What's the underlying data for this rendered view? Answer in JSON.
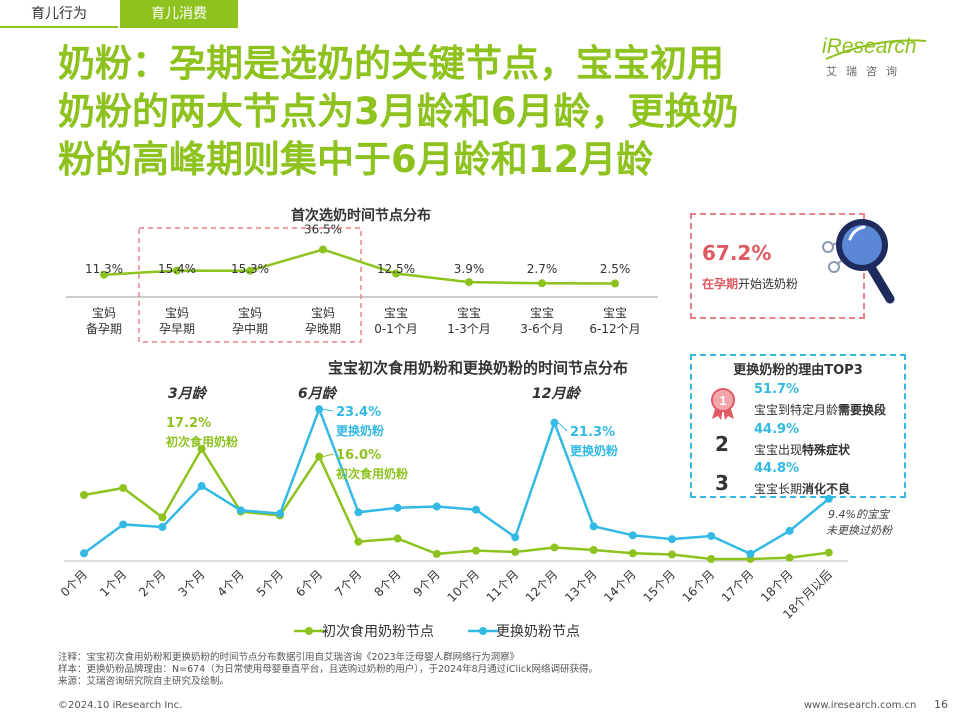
{
  "tabs": {
    "inactive": "育儿行为",
    "active": "育儿消费"
  },
  "logo": {
    "brand": "iResearch",
    "sub": "艾瑞咨询"
  },
  "headline": [
    "奶粉：孕期是选奶的关键节点，宝宝初用",
    "奶粉的两大节点为3月龄和6月龄，更换奶",
    "粉的高峰期则集中于6月龄和12月龄"
  ],
  "colors": {
    "green": "#8dc21f",
    "blue": "#33b9e3",
    "red": "#e05a64"
  },
  "callout": {
    "pct": "67.2%",
    "highlight": "在孕期",
    "rest": "开始选奶粉",
    "icon": "magnifier-icon"
  },
  "top3": {
    "title": "更换奶粉的理由TOP3",
    "items": [
      {
        "rank": "1",
        "pct": "51.7%",
        "text_pre": "宝宝到特定月龄",
        "text_bold": "需要换段",
        "icon": "medal-icon"
      },
      {
        "rank": "2",
        "pct": "44.9%",
        "text_pre": "宝宝出现",
        "text_bold": "特殊症状"
      },
      {
        "rank": "3",
        "pct": "44.8%",
        "text_pre": "宝宝长期",
        "text_bold": "消化不良"
      }
    ]
  },
  "notes": [
    "注释：宝宝初次食用奶粉和更换奶粉的时间节点分布数据引用自艾瑞咨询《2023年泛母婴人群网络行为洞察》",
    "样本：更换奶粉品牌理由：N=674（为日常使用母婴垂直平台，且选购过奶粉的用户），于2024年8月通过iClick网络调研获得。",
    "来源：艾瑞咨询研究院自主研究及绘制。"
  ],
  "footer": {
    "copyright": "©2024.10 iResearch Inc.",
    "url": "www.iresearch.com.cn",
    "page": "16"
  },
  "chart_data": [
    {
      "type": "line",
      "title": "首次选奶时间节点分布",
      "categories": [
        [
          "宝妈",
          "备孕期"
        ],
        [
          "宝妈",
          "孕早期"
        ],
        [
          "宝妈",
          "孕中期"
        ],
        [
          "宝妈",
          "孕晚期"
        ],
        [
          "宝宝",
          "0-1个月"
        ],
        [
          "宝宝",
          "1-3个月"
        ],
        [
          "宝宝",
          "3-6个月"
        ],
        [
          "宝宝",
          "6-12个月"
        ]
      ],
      "values": [
        11.3,
        15.4,
        15.3,
        36.5,
        12.5,
        3.9,
        2.7,
        2.5
      ],
      "labels": [
        "11.3%",
        "15.4%",
        "15.3%",
        "36.5%",
        "12.5%",
        "3.9%",
        "2.7%",
        "2.5%"
      ],
      "highlight_range": [
        1,
        3
      ],
      "color": "#8dc21f"
    },
    {
      "type": "line",
      "title": "宝宝初次食用奶粉和更换奶粉的时间节点分布",
      "categories": [
        "0个月",
        "1个月",
        "2个月",
        "3个月",
        "4个月",
        "5个月",
        "6个月",
        "7个月",
        "8个月",
        "9个月",
        "10个月",
        "11个月",
        "12个月",
        "13个月",
        "14个月",
        "15个月",
        "16个月",
        "17个月",
        "18个月",
        "18个月以后"
      ],
      "series": [
        {
          "name": "初次食用奶粉节点",
          "color": "#8dc21f",
          "values": [
            10.0,
            11.1,
            6.5,
            17.2,
            7.4,
            6.8,
            16.0,
            2.7,
            3.2,
            0.8,
            1.3,
            1.1,
            1.8,
            1.4,
            0.9,
            0.7,
            0.0,
            0.0,
            0.2,
            1.0
          ]
        },
        {
          "name": "更换奶粉节点",
          "color": "#33b9e3",
          "values": [
            0.9,
            5.4,
            5.0,
            11.4,
            7.6,
            7.1,
            23.4,
            7.3,
            8.0,
            8.2,
            7.7,
            3.4,
            21.3,
            5.1,
            3.7,
            3.1,
            3.6,
            0.8,
            4.4,
            9.4
          ]
        }
      ],
      "annotations": [
        {
          "text": "3月龄",
          "index": 3
        },
        {
          "text": "6月龄",
          "index": 6
        },
        {
          "text": "12月龄",
          "index": 12
        },
        {
          "pct": "17.2%",
          "label": "初次食用奶粉",
          "series": 0,
          "index": 3
        },
        {
          "pct": "23.4%",
          "label": "更换奶粉",
          "series": 1,
          "index": 6
        },
        {
          "pct": "16.0%",
          "label": "初次食用奶粉",
          "series": 0,
          "index": 6
        },
        {
          "pct": "21.3%",
          "label": "更换奶粉",
          "series": 1,
          "index": 12
        },
        {
          "line1": "9.4%的宝宝",
          "line2": "未更换过奶粉",
          "series": 1,
          "index": 19
        }
      ],
      "ylim": [
        0,
        25
      ],
      "legend": "bottom"
    }
  ]
}
